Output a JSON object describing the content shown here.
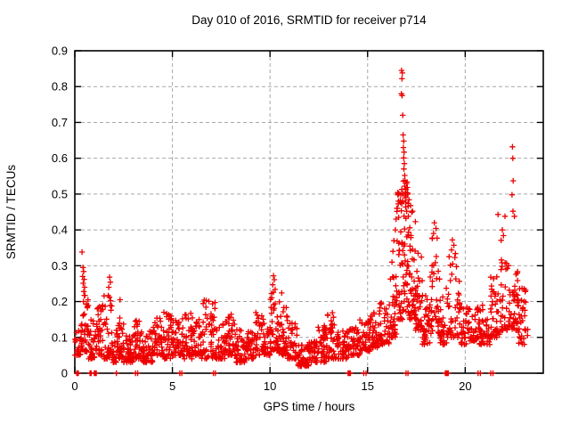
{
  "chart_data": {
    "type": "scatter",
    "title": "Day 010 of 2016, SRMTID for receiver p714",
    "xlabel": "GPS time / hours",
    "ylabel": "SRMTID / TECUs",
    "xlim": [
      0,
      24
    ],
    "ylim": [
      0,
      0.9
    ],
    "x_ticks": {
      "values": [
        0,
        5,
        10,
        15,
        20
      ],
      "labels": [
        "0",
        "5",
        "10",
        "15",
        "20"
      ]
    },
    "y_ticks": {
      "values": [
        0,
        0.1,
        0.2,
        0.3,
        0.4,
        0.5,
        0.6,
        0.7,
        0.8,
        0.9
      ],
      "labels": [
        "0",
        "0.1",
        "0.2",
        "0.3",
        "0.4",
        "0.5",
        "0.6",
        "0.7",
        "0.8",
        "0.9"
      ]
    },
    "grid": {
      "on": true,
      "x_values": [
        5,
        10,
        15,
        20
      ],
      "y_values": [
        0.1,
        0.2,
        0.3,
        0.4,
        0.5,
        0.6,
        0.7,
        0.8
      ]
    },
    "legend": "none",
    "marker": {
      "shape": "plus",
      "size": 7,
      "color": "#ee0000"
    },
    "colors": {
      "marker": "#ee0000",
      "grid": "#a8a8a8",
      "axis": "#000000",
      "background": "#ffffff"
    },
    "prng_seed": 20160110,
    "band_bins": [
      [
        0.0,
        0.3,
        0.05,
        0.14,
        22
      ],
      [
        0.3,
        0.7,
        0.06,
        0.22,
        40
      ],
      [
        0.7,
        1.1,
        0.04,
        0.16,
        32
      ],
      [
        1.1,
        1.5,
        0.05,
        0.19,
        36
      ],
      [
        1.5,
        1.9,
        0.04,
        0.22,
        36
      ],
      [
        1.9,
        2.2,
        0.03,
        0.12,
        26
      ],
      [
        2.2,
        2.5,
        0.04,
        0.19,
        30
      ],
      [
        2.5,
        3.0,
        0.03,
        0.11,
        42
      ],
      [
        3.0,
        3.5,
        0.04,
        0.15,
        42
      ],
      [
        3.5,
        4.0,
        0.03,
        0.12,
        42
      ],
      [
        4.0,
        4.5,
        0.05,
        0.16,
        42
      ],
      [
        4.5,
        5.0,
        0.04,
        0.18,
        42
      ],
      [
        5.0,
        5.5,
        0.05,
        0.15,
        42
      ],
      [
        5.5,
        6.0,
        0.04,
        0.17,
        42
      ],
      [
        6.0,
        6.5,
        0.05,
        0.16,
        42
      ],
      [
        6.5,
        7.2,
        0.04,
        0.21,
        55
      ],
      [
        7.2,
        7.7,
        0.04,
        0.14,
        40
      ],
      [
        7.7,
        8.2,
        0.05,
        0.17,
        40
      ],
      [
        8.2,
        8.7,
        0.03,
        0.13,
        40
      ],
      [
        8.7,
        9.2,
        0.04,
        0.12,
        40
      ],
      [
        9.2,
        9.7,
        0.05,
        0.17,
        40
      ],
      [
        9.7,
        10.0,
        0.05,
        0.13,
        24
      ],
      [
        10.0,
        10.45,
        0.06,
        0.23,
        44
      ],
      [
        10.45,
        10.9,
        0.05,
        0.21,
        40
      ],
      [
        10.9,
        11.4,
        0.04,
        0.15,
        40
      ],
      [
        11.4,
        12.0,
        0.02,
        0.08,
        48
      ],
      [
        12.0,
        12.4,
        0.03,
        0.09,
        32
      ],
      [
        12.4,
        12.9,
        0.03,
        0.14,
        40
      ],
      [
        12.9,
        13.4,
        0.04,
        0.17,
        40
      ],
      [
        13.4,
        14.0,
        0.04,
        0.12,
        46
      ],
      [
        14.0,
        14.6,
        0.05,
        0.13,
        44
      ],
      [
        14.6,
        15.1,
        0.06,
        0.15,
        40
      ],
      [
        15.1,
        15.6,
        0.07,
        0.18,
        40
      ],
      [
        15.6,
        16.1,
        0.08,
        0.2,
        40
      ],
      [
        16.1,
        16.5,
        0.1,
        0.28,
        40
      ],
      [
        16.5,
        16.8,
        0.15,
        0.52,
        42
      ],
      [
        16.8,
        17.1,
        0.17,
        0.55,
        46
      ],
      [
        17.1,
        17.45,
        0.15,
        0.46,
        42
      ],
      [
        17.45,
        17.8,
        0.12,
        0.34,
        36
      ],
      [
        17.8,
        18.2,
        0.08,
        0.24,
        36
      ],
      [
        18.2,
        18.7,
        0.11,
        0.38,
        42
      ],
      [
        18.7,
        19.1,
        0.08,
        0.26,
        30
      ],
      [
        19.1,
        19.7,
        0.1,
        0.34,
        42
      ],
      [
        19.7,
        20.1,
        0.08,
        0.21,
        30
      ],
      [
        20.1,
        20.7,
        0.09,
        0.19,
        42
      ],
      [
        20.7,
        21.3,
        0.08,
        0.19,
        42
      ],
      [
        21.3,
        21.8,
        0.1,
        0.27,
        42
      ],
      [
        21.8,
        22.3,
        0.12,
        0.32,
        42
      ],
      [
        22.3,
        22.7,
        0.12,
        0.3,
        36
      ],
      [
        22.7,
        23.2,
        0.08,
        0.24,
        36
      ]
    ],
    "outlier_points": [
      [
        0.37,
        0.338
      ],
      [
        0.42,
        0.295
      ],
      [
        0.45,
        0.284
      ],
      [
        0.4,
        0.27
      ],
      [
        0.48,
        0.262
      ],
      [
        0.43,
        0.251
      ],
      [
        0.5,
        0.24
      ],
      [
        0.46,
        0.228
      ],
      [
        0.52,
        0.217
      ],
      [
        1.78,
        0.268
      ],
      [
        1.82,
        0.254
      ],
      [
        1.74,
        0.24
      ],
      [
        2.32,
        0.205
      ],
      [
        10.18,
        0.272
      ],
      [
        10.22,
        0.261
      ],
      [
        10.14,
        0.247
      ],
      [
        10.26,
        0.234
      ],
      [
        10.6,
        0.224
      ],
      [
        16.25,
        0.31
      ],
      [
        16.3,
        0.34
      ],
      [
        16.35,
        0.37
      ],
      [
        16.42,
        0.4
      ],
      [
        16.46,
        0.43
      ],
      [
        16.52,
        0.46
      ],
      [
        16.58,
        0.48
      ],
      [
        16.55,
        0.5
      ],
      [
        16.74,
        0.845
      ],
      [
        16.78,
        0.838
      ],
      [
        16.76,
        0.822
      ],
      [
        16.73,
        0.78
      ],
      [
        16.77,
        0.775
      ],
      [
        16.8,
        0.72
      ],
      [
        16.82,
        0.665
      ],
      [
        16.85,
        0.648
      ],
      [
        16.83,
        0.63
      ],
      [
        16.87,
        0.617
      ],
      [
        16.85,
        0.601
      ],
      [
        16.88,
        0.585
      ],
      [
        16.86,
        0.57
      ],
      [
        16.9,
        0.552
      ],
      [
        16.92,
        0.538
      ],
      [
        16.9,
        0.522
      ],
      [
        16.94,
        0.505
      ],
      [
        16.93,
        0.49
      ],
      [
        16.96,
        0.477
      ],
      [
        16.95,
        0.464
      ],
      [
        17.0,
        0.452
      ],
      [
        17.06,
        0.5
      ],
      [
        17.12,
        0.484
      ],
      [
        17.2,
        0.468
      ],
      [
        17.3,
        0.452
      ],
      [
        18.42,
        0.42
      ],
      [
        18.5,
        0.404
      ],
      [
        18.38,
        0.39
      ],
      [
        18.56,
        0.377
      ],
      [
        19.34,
        0.372
      ],
      [
        19.42,
        0.357
      ],
      [
        19.3,
        0.344
      ],
      [
        19.5,
        0.334
      ],
      [
        21.68,
        0.443
      ],
      [
        22.04,
        0.438
      ],
      [
        21.9,
        0.4
      ],
      [
        21.96,
        0.384
      ],
      [
        21.84,
        0.371
      ],
      [
        22.42,
        0.632
      ],
      [
        22.44,
        0.6
      ],
      [
        22.46,
        0.537
      ],
      [
        22.4,
        0.498
      ],
      [
        22.45,
        0.452
      ],
      [
        22.52,
        0.438
      ]
    ],
    "zero_points": [
      0.1,
      0.12,
      0.14,
      0.16,
      0.18,
      0.78,
      0.81,
      0.84,
      1.0,
      1.03,
      1.06,
      1.1,
      2.13,
      3.11,
      3.22,
      5.38,
      5.48,
      7.1,
      7.2,
      14.0,
      14.03,
      14.06,
      14.09,
      14.12,
      14.8,
      14.92,
      16.97,
      17.07,
      18.98,
      19.01,
      19.04,
      19.07,
      19.1,
      19.13,
      20.66,
      20.78,
      21.31,
      21.42
    ]
  }
}
